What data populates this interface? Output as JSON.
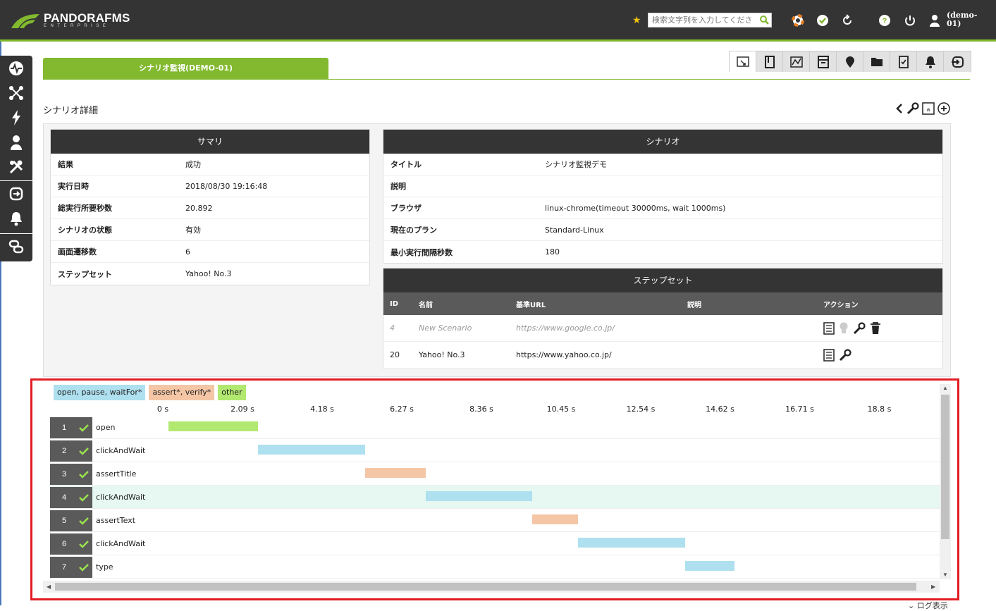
{
  "app": {
    "brand": "PANDORAFMS",
    "brand_sub": "ENTERPRISE"
  },
  "header": {
    "search_placeholder": "検索文字列を入力してくださ",
    "user_label": "(demo-01)"
  },
  "page": {
    "title_tab": "シナリオ監視(DEMO-01)",
    "subtitle": "シナリオ詳細"
  },
  "summary": {
    "heading": "サマリ",
    "rows": [
      {
        "key": "結果",
        "value": "成功"
      },
      {
        "key": "実行日時",
        "value": "2018/08/30 19:16:48"
      },
      {
        "key": "総実行所要秒数",
        "value": "20.892"
      },
      {
        "key": "シナリオの状態",
        "value": "有効"
      },
      {
        "key": "画面遷移数",
        "value": "6"
      },
      {
        "key": "ステップセット",
        "value": "Yahoo! No.3"
      }
    ]
  },
  "scenario": {
    "heading": "シナリオ",
    "rows": [
      {
        "key": "タイトル",
        "value": "シナリオ監視デモ"
      },
      {
        "key": "説明",
        "value": ""
      },
      {
        "key": "ブラウザ",
        "value": "linux-chrome(timeout 30000ms, wait 1000ms)"
      },
      {
        "key": "現在のプラン",
        "value": "Standard-Linux"
      },
      {
        "key": "最小実行間隔秒数",
        "value": "180"
      }
    ]
  },
  "stepset": {
    "heading": "ステップセット",
    "columns": [
      "ID",
      "名前",
      "基準URL",
      "説明",
      "アクション"
    ],
    "rows": [
      {
        "id": "4",
        "name": "New Scenario",
        "url": "https://www.google.co.jp/",
        "desc": "",
        "disabled": true
      },
      {
        "id": "20",
        "name": "Yahoo! No.3",
        "url": "https://www.yahoo.co.jp/",
        "desc": "",
        "disabled": false
      }
    ]
  },
  "legend": [
    {
      "label": "open, pause, waitFor*",
      "color": "#aee0ef"
    },
    {
      "label": "assert*, verify*",
      "color": "#f4c6a6"
    },
    {
      "label": "other",
      "color": "#b1e86f"
    }
  ],
  "chart_data": {
    "type": "gantt",
    "x_unit": "s",
    "xlim": [
      0,
      20.892
    ],
    "ticks": [
      "0 s",
      "2.09 s",
      "4.18 s",
      "6.27 s",
      "8.36 s",
      "10.45 s",
      "12.54 s",
      "14.62 s",
      "16.71 s",
      "18.8 s"
    ],
    "tick_values": [
      0,
      2.09,
      4.18,
      6.27,
      8.36,
      10.45,
      12.54,
      14.62,
      16.71,
      18.8
    ],
    "steps": [
      {
        "num": "1",
        "name": "open",
        "start": 0.15,
        "end": 2.5,
        "category": "other",
        "color": "#b1e86f"
      },
      {
        "num": "2",
        "name": "clickAndWait",
        "start": 2.5,
        "end": 5.3,
        "category": "open, pause, waitFor*",
        "color": "#aee0ef"
      },
      {
        "num": "3",
        "name": "assertTitle",
        "start": 5.3,
        "end": 6.9,
        "category": "assert*, verify*",
        "color": "#f4c6a6"
      },
      {
        "num": "4",
        "name": "clickAndWait",
        "start": 6.9,
        "end": 9.7,
        "category": "open, pause, waitFor*",
        "color": "#aee0ef",
        "highlight": true
      },
      {
        "num": "5",
        "name": "assertText",
        "start": 9.7,
        "end": 10.9,
        "category": "assert*, verify*",
        "color": "#f4c6a6"
      },
      {
        "num": "6",
        "name": "clickAndWait",
        "start": 10.9,
        "end": 13.7,
        "category": "open, pause, waitFor*",
        "color": "#aee0ef"
      },
      {
        "num": "7",
        "name": "type",
        "start": 13.7,
        "end": 15.0,
        "category": "open, pause, waitFor*",
        "color": "#aee0ef"
      }
    ]
  },
  "footer": {
    "hint": "ログ表示"
  }
}
